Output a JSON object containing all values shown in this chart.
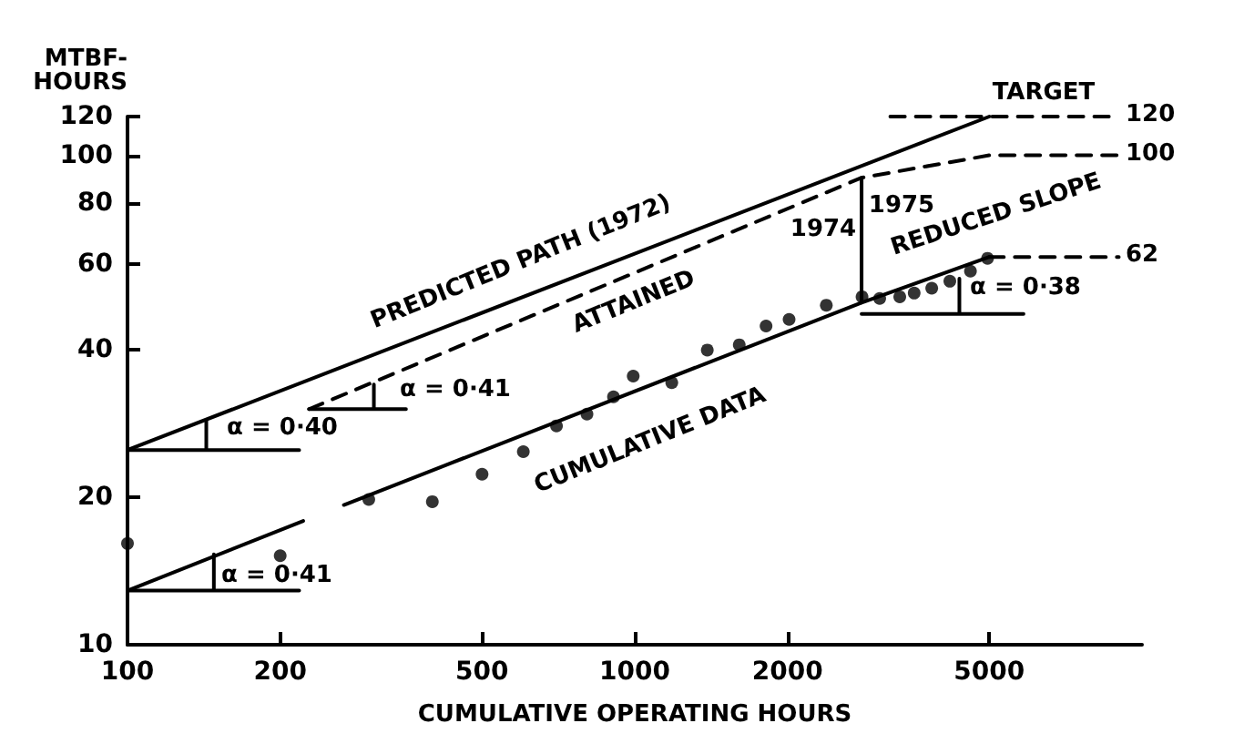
{
  "chart_data": {
    "type": "line",
    "xlabel": "CUMULATIVE OPERATING HOURS",
    "ylabel": "MTBF-\nHOURS",
    "log": "xy",
    "grid": false,
    "xlim": [
      100,
      10000
    ],
    "xticks": [
      100,
      200,
      500,
      1000,
      2000,
      5000
    ],
    "ylim": [
      10,
      120
    ],
    "yticks": [
      10,
      20,
      40,
      60,
      80,
      100,
      120
    ],
    "series": [
      {
        "color": "#000000",
        "line_style": "solid",
        "x": [
          100,
          5000
        ],
        "values": [
          25,
          120
        ]
      },
      {
        "color": "#000000",
        "line_style": "dashed",
        "x": [
          228,
          2800,
          5000,
          9000
        ],
        "values": [
          30.3,
          90,
          100,
          100
        ]
      },
      {
        "color": "#000000",
        "line_style": "solid",
        "x": [
          100,
          222,
          240,
          267,
          2800,
          5000
        ],
        "values": [
          12.9,
          17.9,
          null,
          19.3,
          50,
          62
        ]
      },
      {
        "type": "scatter",
        "color": "#000000",
        "marker": "circle",
        "x": [
          100,
          200,
          299,
          399,
          500,
          603,
          701,
          805,
          908,
          993,
          1183,
          1390,
          1607,
          1815,
          2015,
          2386,
          2806,
          3040,
          3330,
          3555,
          3850,
          4180,
          4590,
          4960
        ],
        "values": [
          16.1,
          15.2,
          19.8,
          19.6,
          22.3,
          24.8,
          28,
          29.6,
          32.1,
          35.4,
          34.3,
          40,
          41,
          44.8,
          46.2,
          49.4,
          51.4,
          51,
          51.4,
          52.3,
          53.5,
          55.3,
          58,
          61.6
        ]
      },
      {
        "color": "#000000",
        "line_style": "solid",
        "x": [
          2800,
          2800
        ],
        "values": [
          50,
          90
        ]
      },
      {
        "color": "#000000",
        "line_style": "dashed",
        "x": [
          3190,
          9000
        ],
        "values": [
          120,
          120
        ]
      },
      {
        "color": "#000000",
        "line_style": "dashed",
        "x": [
          5000,
          9000
        ],
        "values": [
          62,
          62
        ]
      },
      {
        "color": "#000000",
        "line_style": "solid",
        "x": [
          100,
          218,
          180,
          143,
          143
        ],
        "values": [
          25,
          25,
          null,
          25,
          28.8
        ]
      },
      {
        "color": "#000000",
        "line_style": "solid",
        "x": [
          228,
          354,
          330,
          306,
          306
        ],
        "values": [
          30.3,
          30.3,
          null,
          30.3,
          34
        ]
      },
      {
        "color": "#000000",
        "line_style": "solid",
        "x": [
          100,
          218,
          180,
          148,
          148
        ],
        "values": [
          12.9,
          12.9,
          null,
          12.9,
          15.3
        ]
      },
      {
        "color": "#000000",
        "line_style": "solid",
        "x": [
          2800,
          5840,
          5000,
          4365,
          4365
        ],
        "values": [
          47.4,
          47.4,
          null,
          47.4,
          56
        ]
      }
    ],
    "annotations": [
      "PREDICTED PATH (1972)",
      "ATTAINED",
      "CUMULATIVE DATA",
      "REDUCED SLOPE",
      "1974",
      "1975",
      "α = 0·40",
      "α = 0·41",
      "α = 0·41",
      "α = 0·38",
      "TARGET",
      "120",
      "100",
      "62"
    ]
  }
}
